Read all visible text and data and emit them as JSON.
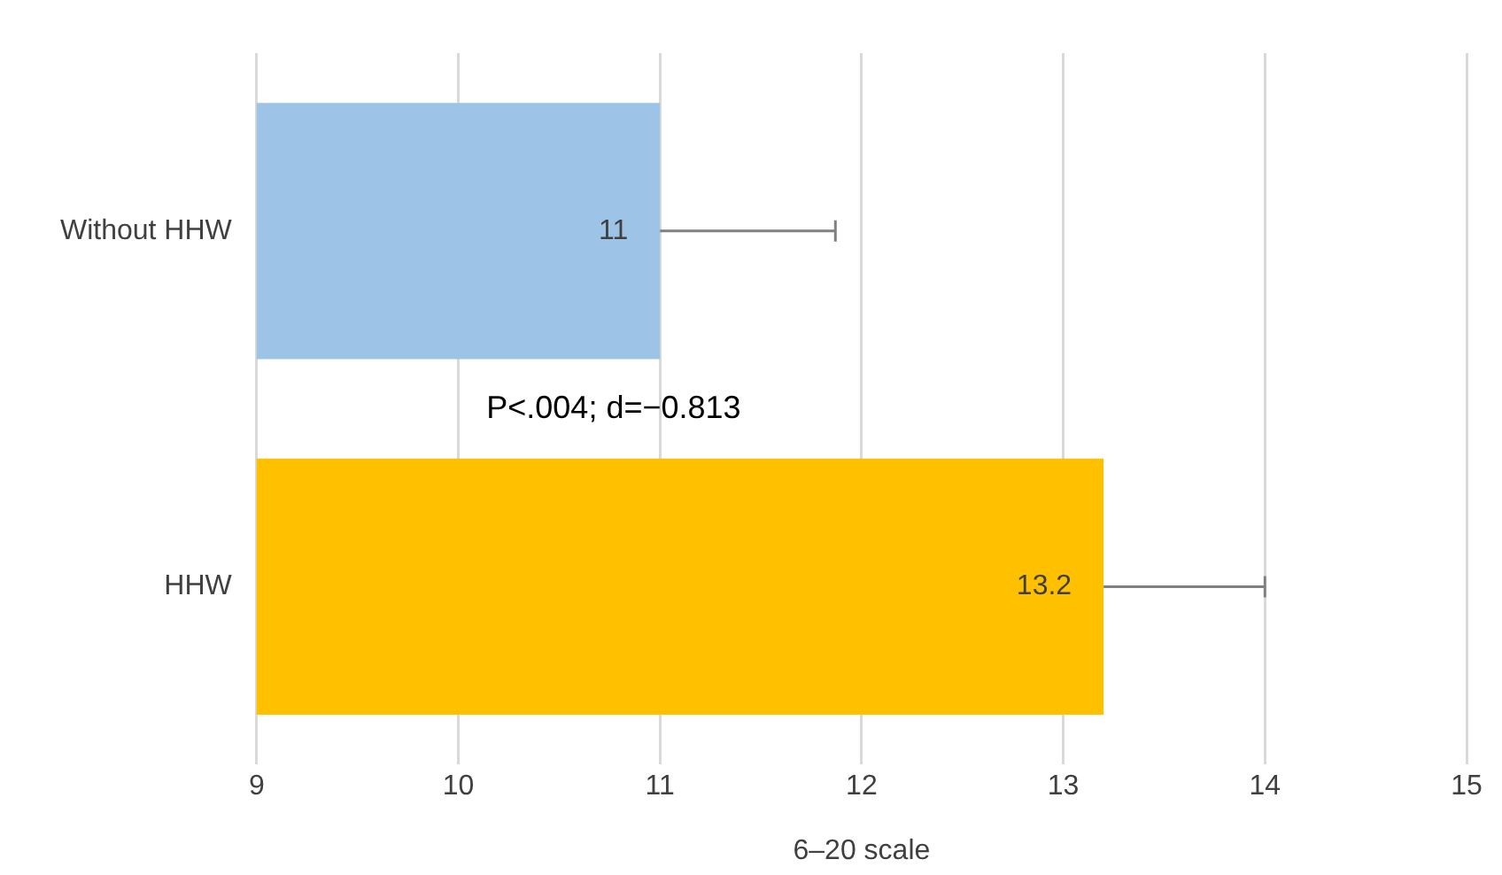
{
  "chart_data": {
    "type": "bar",
    "orientation": "horizontal",
    "xlabel": "6–20 scale",
    "categories": [
      "Without HHW",
      "HHW"
    ],
    "values": [
      11,
      13.2
    ],
    "colors": [
      "#9dc3e6",
      "#ffc000"
    ],
    "errors": [
      [
        11,
        11.87
      ],
      [
        13.2,
        14
      ]
    ],
    "xlim": [
      9,
      15
    ],
    "xticks": [
      9,
      10,
      11,
      12,
      13,
      14,
      15
    ],
    "grid": "x",
    "legend": false,
    "data_labels": true,
    "annotations": [
      "P<.004; d=−0.813"
    ]
  }
}
